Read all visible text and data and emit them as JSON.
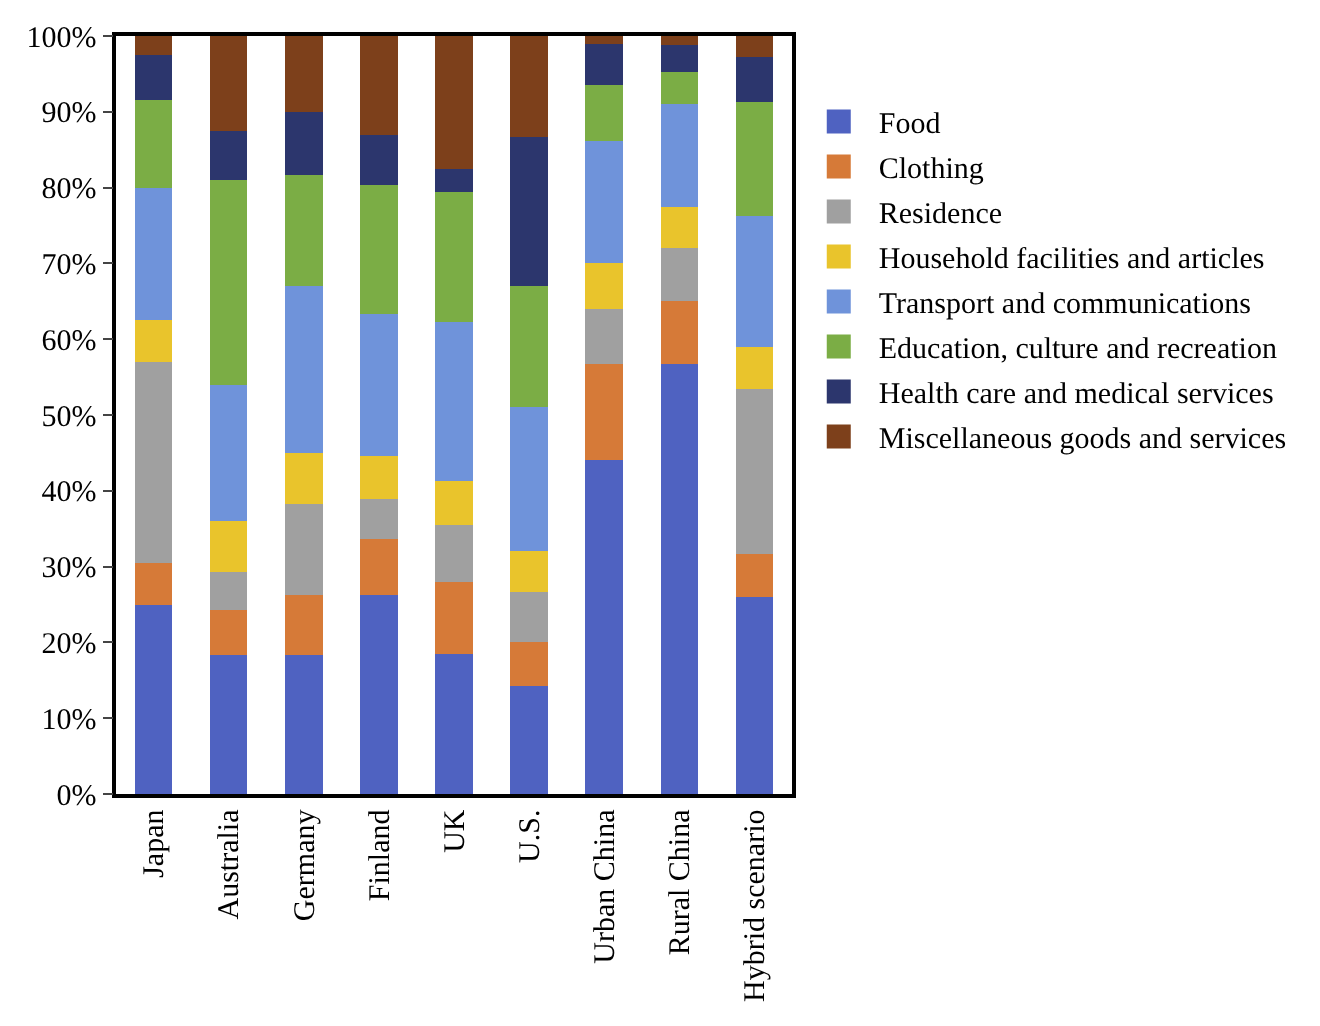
{
  "chart_data": {
    "type": "bar",
    "stacked": true,
    "categories": [
      "Japan",
      "Australia",
      "Germany",
      "Finland",
      "UK",
      "U.S.",
      "Urban China",
      "Rural China",
      "Hybrid scenario"
    ],
    "series": [
      {
        "name": "Food",
        "color": "#4f62c1",
        "values": [
          25,
          18.3,
          18.3,
          26.3,
          18.5,
          14.3,
          44,
          56.7,
          26
        ]
      },
      {
        "name": "Clothing",
        "color": "#d67a38",
        "values": [
          5.5,
          6,
          8,
          7.3,
          9.5,
          5.7,
          12.7,
          8.3,
          5.6
        ]
      },
      {
        "name": "Residence",
        "color": "#a0a0a0",
        "values": [
          26.5,
          5,
          12,
          5.3,
          7.5,
          6.7,
          7.3,
          7,
          21.8
        ]
      },
      {
        "name": "Household facilities and articles",
        "color": "#e9c42c",
        "values": [
          5.5,
          6.7,
          6.7,
          5.7,
          5.8,
          5.3,
          6,
          5.4,
          5.6
        ]
      },
      {
        "name": "Transport and communications",
        "color": "#6f93da",
        "values": [
          17.5,
          18,
          22,
          18.7,
          21,
          19,
          16.2,
          13.6,
          17.2
        ]
      },
      {
        "name": "Education, culture and recreation",
        "color": "#7bad45",
        "values": [
          11.5,
          27,
          14.7,
          17.1,
          17.1,
          16,
          7.4,
          4.2,
          15.1
        ]
      },
      {
        "name": "Health care and medical services",
        "color": "#2c366d",
        "values": [
          6,
          6.5,
          8.3,
          6.5,
          3,
          19.7,
          5.4,
          3.6,
          5.9
        ]
      },
      {
        "name": "Miscellaneous goods and services",
        "color": "#7d401b",
        "values": [
          2.5,
          12.5,
          10,
          13.1,
          17.6,
          13.3,
          1,
          1.2,
          2.8
        ]
      }
    ],
    "ylim": [
      0,
      100
    ],
    "yticks": [
      {
        "value": 0,
        "label": "0%"
      },
      {
        "value": 10,
        "label": "10%"
      },
      {
        "value": 20,
        "label": "20%"
      },
      {
        "value": 30,
        "label": "30%"
      },
      {
        "value": 40,
        "label": "40%"
      },
      {
        "value": 50,
        "label": "50%"
      },
      {
        "value": 60,
        "label": "60%"
      },
      {
        "value": 70,
        "label": "70%"
      },
      {
        "value": 80,
        "label": "80%"
      },
      {
        "value": 90,
        "label": "90%"
      },
      {
        "value": 100,
        "label": "100%"
      }
    ],
    "grid": false,
    "legend": "right"
  }
}
